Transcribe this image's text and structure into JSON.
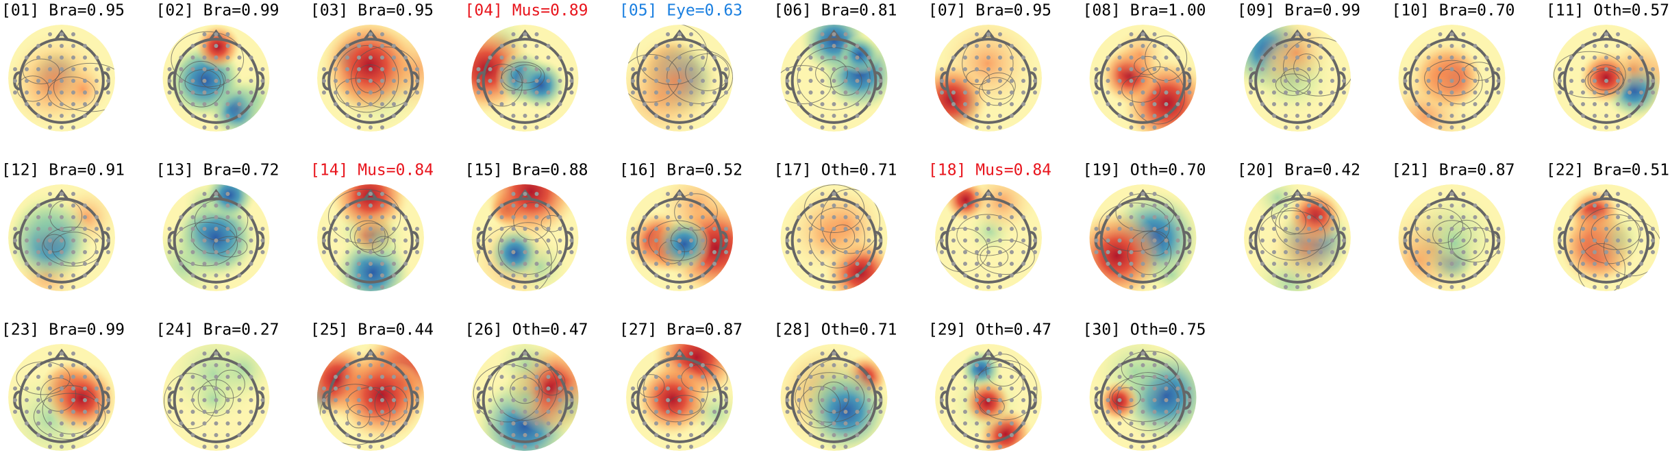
{
  "components": [
    {
      "title": "[01] Bra=0.95",
      "color": "#000000"
    },
    {
      "title": "[02] Bra=0.99",
      "color": "#000000"
    },
    {
      "title": "[03] Bra=0.95",
      "color": "#000000"
    },
    {
      "title": "[04] Mus=0.89",
      "color": "#e8141c"
    },
    {
      "title": "[05] Eye=0.63",
      "color": "#1a7fe0"
    },
    {
      "title": "[06] Bra=0.81",
      "color": "#000000"
    },
    {
      "title": "[07] Bra=0.95",
      "color": "#000000"
    },
    {
      "title": "[08] Bra=1.00",
      "color": "#000000"
    },
    {
      "title": "[09] Bra=0.99",
      "color": "#000000"
    },
    {
      "title": "[10] Bra=0.70",
      "color": "#000000"
    },
    {
      "title": "[11] Oth=0.57",
      "color": "#000000"
    },
    {
      "title": "[12] Bra=0.91",
      "color": "#000000"
    },
    {
      "title": "[13] Bra=0.72",
      "color": "#000000"
    },
    {
      "title": "[14] Mus=0.84",
      "color": "#e8141c"
    },
    {
      "title": "[15] Bra=0.88",
      "color": "#000000"
    },
    {
      "title": "[16] Bra=0.52",
      "color": "#000000"
    },
    {
      "title": "[17] Oth=0.71",
      "color": "#000000"
    },
    {
      "title": "[18] Mus=0.84",
      "color": "#e8141c"
    },
    {
      "title": "[19] Oth=0.70",
      "color": "#000000"
    },
    {
      "title": "[20] Bra=0.42",
      "color": "#000000"
    },
    {
      "title": "[21] Bra=0.87",
      "color": "#000000"
    },
    {
      "title": "[22] Bra=0.51",
      "color": "#000000"
    },
    {
      "title": "[23] Bra=0.99",
      "color": "#000000"
    },
    {
      "title": "[24] Bra=0.27",
      "color": "#000000"
    },
    {
      "title": "[25] Bra=0.44",
      "color": "#000000"
    },
    {
      "title": "[26] Oth=0.47",
      "color": "#000000"
    },
    {
      "title": "[27] Bra=0.87",
      "color": "#000000"
    },
    {
      "title": "[28] Oth=0.71",
      "color": "#000000"
    },
    {
      "title": "[29] Oth=0.47",
      "color": "#000000"
    },
    {
      "title": "[30] Oth=0.75",
      "color": "#000000"
    }
  ]
}
